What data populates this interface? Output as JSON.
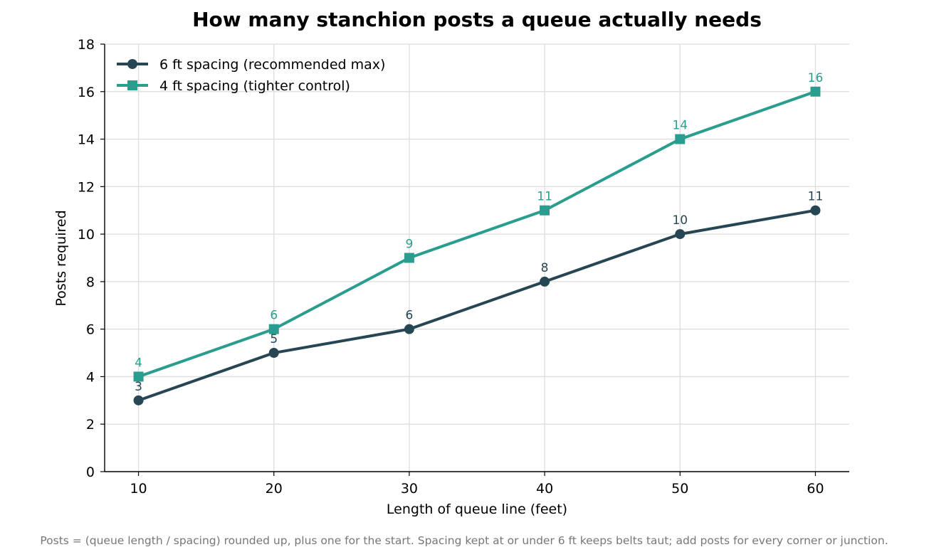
{
  "chart_data": {
    "type": "line",
    "title": "How many stanchion posts a queue actually needs",
    "xlabel": "Length of queue line (feet)",
    "ylabel": "Posts required",
    "x": [
      10,
      20,
      30,
      40,
      50,
      60
    ],
    "xticks": [
      "10",
      "20",
      "30",
      "40",
      "50",
      "60"
    ],
    "xlim": [
      7.5,
      62.5
    ],
    "ylim": [
      0,
      18
    ],
    "yticks": [
      "0",
      "2",
      "4",
      "6",
      "8",
      "10",
      "12",
      "14",
      "16",
      "18"
    ],
    "grid": true,
    "legend_position": "top-left",
    "series": [
      {
        "name": "6 ft spacing (recommended max)",
        "values": [
          3,
          5,
          6,
          8,
          10,
          11
        ],
        "labels": [
          "3",
          "5",
          "6",
          "8",
          "10",
          "11"
        ],
        "color": "#264653",
        "marker": "circle"
      },
      {
        "name": "4 ft spacing (tighter control)",
        "values": [
          4,
          6,
          9,
          11,
          14,
          16
        ],
        "labels": [
          "4",
          "6",
          "9",
          "11",
          "14",
          "16"
        ],
        "color": "#2a9d8f",
        "marker": "square"
      }
    ],
    "footnote": "Posts = (queue length / spacing) rounded up, plus one for the start. Spacing kept at or under 6 ft keeps belts taut; add posts for every corner or junction."
  }
}
